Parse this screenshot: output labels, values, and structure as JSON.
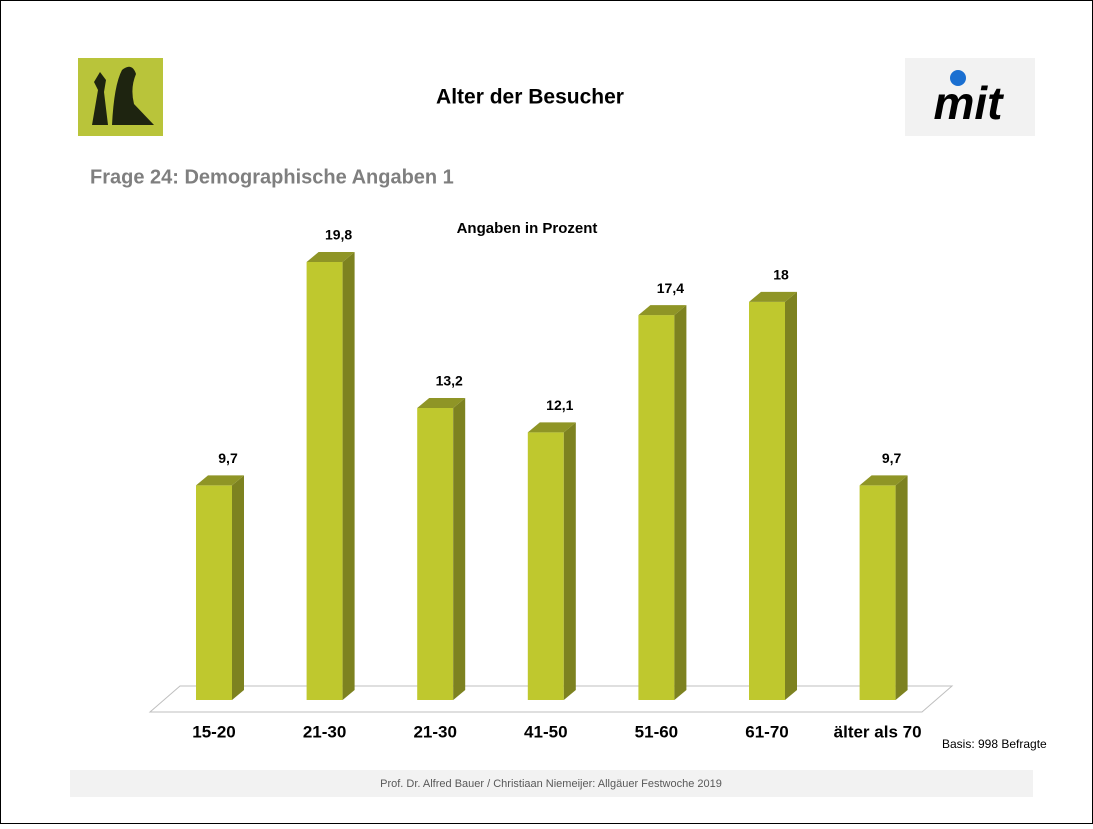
{
  "header": {
    "title": "Alter der Besucher",
    "logo_text": "mit"
  },
  "subtitle": "Frage 24: Demographische Angaben 1",
  "chart_data": {
    "type": "bar",
    "title": "Angaben in Prozent",
    "categories": [
      "15-20",
      "21-30",
      "21-30",
      "41-50",
      "51-60",
      "61-70",
      "älter als 70"
    ],
    "values": [
      9.7,
      19.8,
      13.2,
      12.1,
      17.4,
      18,
      9.7
    ],
    "value_labels": [
      "9,7",
      "19,8",
      "13,2",
      "12,1",
      "17,4",
      "18",
      "9,7"
    ],
    "color": "#bfc82e",
    "note": "Basis: 998 Befragte"
  },
  "footer": "Prof. Dr. Alfred Bauer  / Christiaan Niemeijer:  Allgäuer Festwoche 2019"
}
